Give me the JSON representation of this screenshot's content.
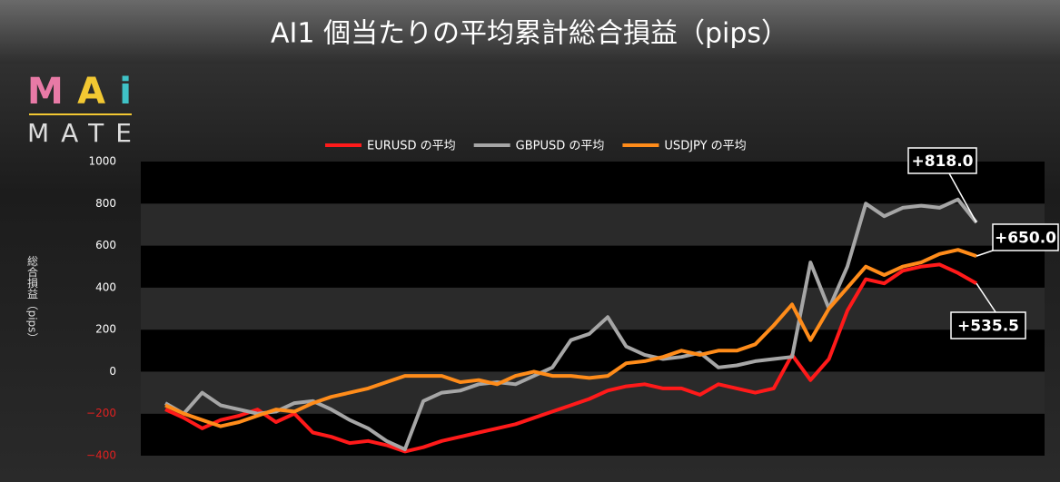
{
  "chart_data": {
    "type": "line",
    "title": "AI1 個当たりの平均累計総合損益（pips）",
    "logo": {
      "top": "MAi",
      "bottom": "MATE"
    },
    "ylabel": "総合損益（pips）",
    "ylim": [
      -400,
      1000
    ],
    "yticks": [
      {
        "value": -400,
        "label": "−400"
      },
      {
        "value": -200,
        "label": "−200"
      },
      0,
      200,
      400,
      600,
      800,
      1000
    ],
    "grid": true,
    "legend": "top",
    "series": [
      {
        "name": "EURUSD の平均",
        "color": "#ff1a1a",
        "values": [
          -180,
          -220,
          -270,
          -230,
          -210,
          -180,
          -240,
          -200,
          -290,
          -310,
          -340,
          -330,
          -350,
          -380,
          -360,
          -330,
          -310,
          -290,
          -270,
          -250,
          -220,
          -190,
          -160,
          -130,
          -90,
          -70,
          -60,
          -80,
          -80,
          -110,
          -60,
          -80,
          -100,
          -80,
          80,
          -40,
          60,
          290,
          440,
          420,
          480,
          500,
          510,
          470,
          420
        ]
      },
      {
        "name": "GBPUSD の平均",
        "color": "#a6a6a6",
        "values": [
          -150,
          -200,
          -100,
          -160,
          -180,
          -200,
          -190,
          -150,
          -140,
          -180,
          -230,
          -270,
          -330,
          -370,
          -140,
          -100,
          -90,
          -60,
          -50,
          -60,
          -20,
          20,
          150,
          180,
          260,
          120,
          80,
          60,
          70,
          90,
          20,
          30,
          50,
          60,
          70,
          520,
          300,
          500,
          800,
          740,
          780,
          790,
          780,
          820,
          710
        ]
      },
      {
        "name": "USDJPY の平均",
        "color": "#ff8c1a",
        "values": [
          -160,
          -200,
          -230,
          -260,
          -240,
          -210,
          -180,
          -190,
          -150,
          -120,
          -100,
          -80,
          -50,
          -20,
          -20,
          -20,
          -50,
          -40,
          -60,
          -20,
          0,
          -20,
          -20,
          -30,
          -20,
          40,
          50,
          70,
          100,
          80,
          100,
          100,
          130,
          220,
          320,
          150,
          300,
          400,
          500,
          460,
          500,
          520,
          560,
          580,
          550
        ]
      }
    ],
    "annotations": [
      {
        "text": "+818.0"
      },
      {
        "text": "+650.0"
      },
      {
        "text": "+535.5"
      }
    ]
  }
}
